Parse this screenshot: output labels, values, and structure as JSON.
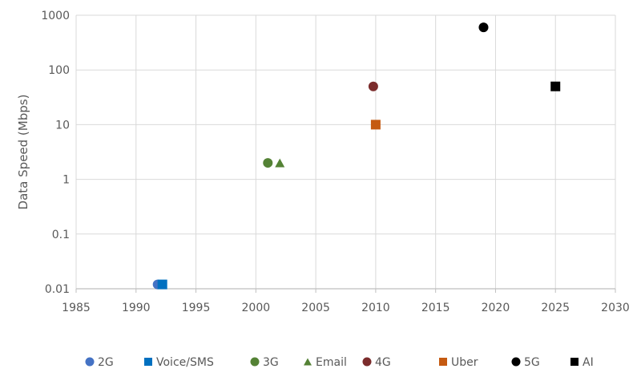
{
  "chart_data": {
    "type": "scatter",
    "title": "",
    "xlabel": "",
    "ylabel": "Data Speed (Mbps)",
    "xlim": [
      1985,
      2030
    ],
    "ylim": [
      0.01,
      1000
    ],
    "yscale": "log",
    "xticks": [
      1985,
      1990,
      1995,
      2000,
      2005,
      2010,
      2015,
      2020,
      2025,
      2030
    ],
    "yticks": [
      0.01,
      0.1,
      1,
      10,
      100,
      1000
    ],
    "ytick_labels": [
      "0.01",
      "0.1",
      "1",
      "10",
      "100",
      "1000"
    ],
    "grid": true,
    "legend_position": "bottom",
    "series": [
      {
        "name": "2G",
        "marker": "circle",
        "color": "#4472C4",
        "points": [
          {
            "x": 1991.8,
            "y": 0.012
          }
        ]
      },
      {
        "name": "Voice/SMS",
        "marker": "square",
        "color": "#0070C0",
        "points": [
          {
            "x": 1992.2,
            "y": 0.012
          }
        ]
      },
      {
        "name": "3G",
        "marker": "circle",
        "color": "#548235",
        "points": [
          {
            "x": 2001,
            "y": 2
          }
        ]
      },
      {
        "name": "Email",
        "marker": "triangle",
        "color": "#548235",
        "points": [
          {
            "x": 2002,
            "y": 2
          }
        ]
      },
      {
        "name": "4G",
        "marker": "circle",
        "color": "#7B2C2C",
        "points": [
          {
            "x": 2009.8,
            "y": 50
          }
        ]
      },
      {
        "name": "Uber",
        "marker": "square",
        "color": "#C55A11",
        "points": [
          {
            "x": 2010,
            "y": 10
          }
        ]
      },
      {
        "name": "5G",
        "marker": "circle",
        "color": "#000000",
        "points": [
          {
            "x": 2019,
            "y": 600
          }
        ]
      },
      {
        "name": "AI",
        "marker": "square",
        "color": "#000000",
        "points": [
          {
            "x": 2025,
            "y": 50
          }
        ]
      }
    ]
  }
}
